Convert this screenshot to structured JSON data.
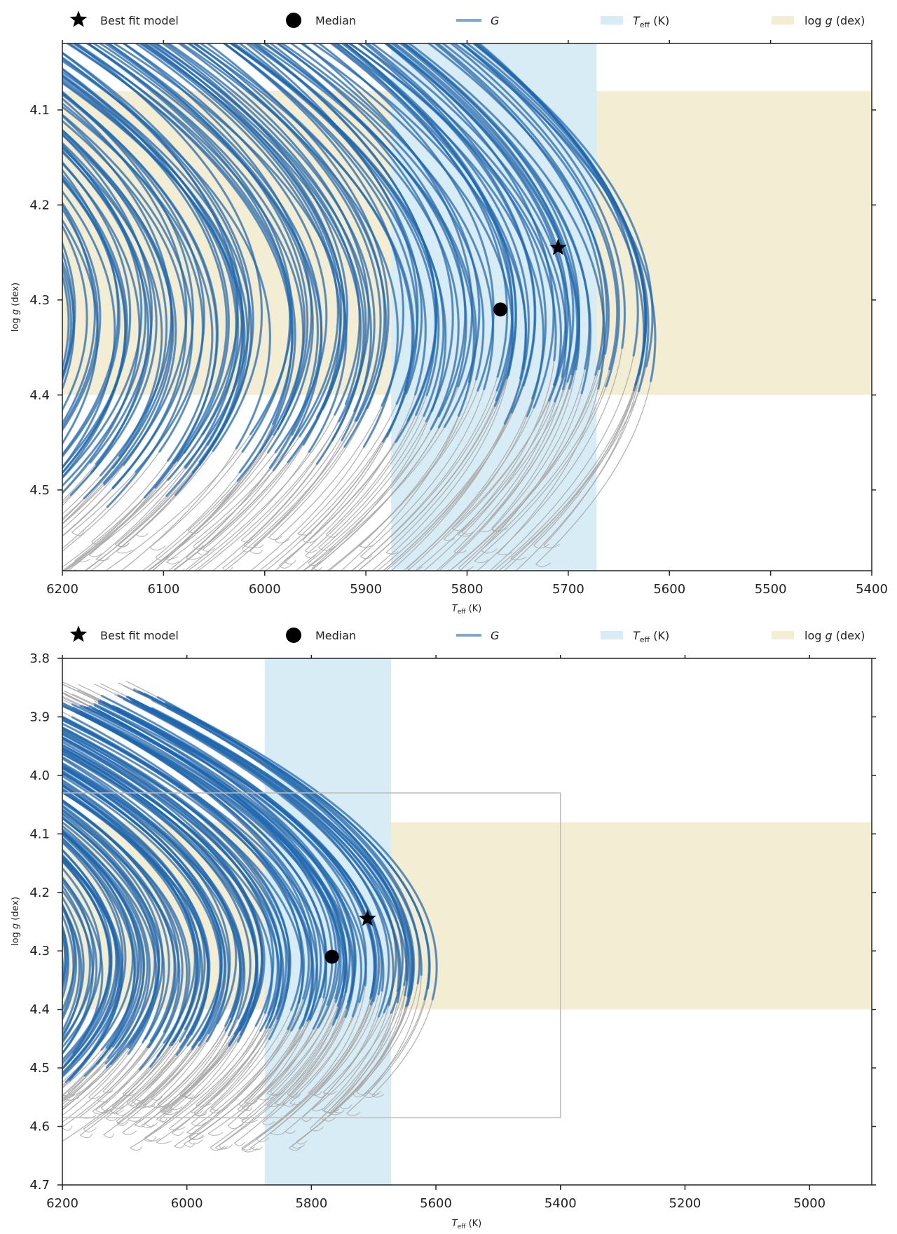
{
  "legend": {
    "best_fit": "Best fit model",
    "median": "Median",
    "g_label_main": "G",
    "teff_label_main": "T",
    "teff_label_sub": "eff",
    "teff_label_unit": " (K)",
    "logg_label_main": "log ",
    "logg_label_ital": "g",
    "logg_label_unit": " (dex)"
  },
  "colors": {
    "track_gray": "#a8a8a8",
    "track_blue": "#1c65b0",
    "teff_band": "#d8ecf6",
    "logg_band": "#f3edd4",
    "marker": "#000000"
  },
  "chart_data": [
    {
      "type": "line",
      "xlabel_main": "T",
      "xlabel_sub": "eff",
      "xlabel_unit": " (K)",
      "ylabel_main": "log ",
      "ylabel_ital": "g",
      "ylabel_unit": " (dex)",
      "xlim": [
        6200,
        5400
      ],
      "ylim": [
        4.03,
        4.585
      ],
      "xticks": [
        6200,
        6100,
        6000,
        5900,
        5800,
        5700,
        5600,
        5500,
        5400
      ],
      "yticks": [
        4.1,
        4.2,
        4.3,
        4.4,
        4.5
      ],
      "teff_band": [
        5875,
        5672
      ],
      "logg_band": [
        4.08,
        4.4
      ],
      "best_fit": {
        "x": 5710,
        "y": 4.245
      },
      "median": {
        "x": 5767,
        "y": 4.31
      },
      "grid": false
    },
    {
      "type": "line",
      "xlabel_main": "T",
      "xlabel_sub": "eff",
      "xlabel_unit": " (K)",
      "ylabel_main": "log ",
      "ylabel_ital": "g",
      "ylabel_unit": " (dex)",
      "xlim": [
        6200,
        4900
      ],
      "ylim": [
        3.8,
        4.7
      ],
      "xticks": [
        6200,
        6000,
        5800,
        5600,
        5400,
        5200,
        5000
      ],
      "yticks": [
        3.8,
        3.9,
        4.0,
        4.1,
        4.2,
        4.3,
        4.4,
        4.5,
        4.6,
        4.7
      ],
      "teff_band": [
        5875,
        5672
      ],
      "logg_band": [
        4.08,
        4.4
      ],
      "best_fit": {
        "x": 5710,
        "y": 4.245
      },
      "median": {
        "x": 5767,
        "y": 4.31
      },
      "inset_box": {
        "x": [
          6200,
          5400
        ],
        "y": [
          4.03,
          4.585
        ]
      },
      "grid": false
    }
  ]
}
